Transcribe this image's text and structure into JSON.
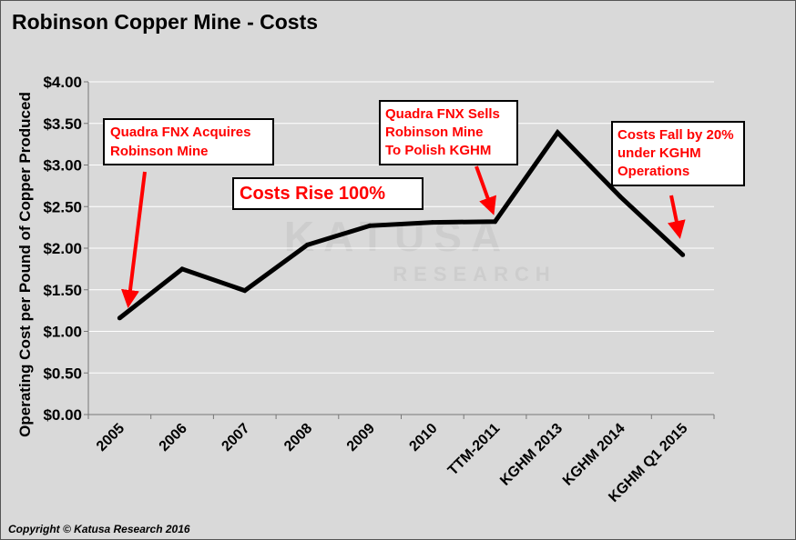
{
  "chart_data": {
    "type": "line",
    "title": "Robinson Copper Mine - Costs",
    "ylabel": "Operating Cost per Pound of Copper Produced",
    "xlabel": "",
    "categories": [
      "2005",
      "2006",
      "2007",
      "2008",
      "2009",
      "2010",
      "TTM-2011",
      "KGHM 2013",
      "KGHM 2014",
      "KGHM Q1 2015"
    ],
    "series": [
      {
        "values": [
          1.16,
          1.75,
          1.49,
          2.04,
          2.27,
          2.31,
          2.32,
          3.39,
          2.62,
          1.92
        ]
      }
    ],
    "ylim": [
      0,
      4
    ],
    "yticks": [
      "$0.00",
      "$0.50",
      "$1.00",
      "$1.50",
      "$2.00",
      "$2.50",
      "$3.00",
      "$3.50",
      "$4.00"
    ],
    "grid": true,
    "line_color": "#000000",
    "annotations": [
      {
        "id": "acquire",
        "text": "Quadra FNX Acquires\nRobinson Mine"
      },
      {
        "id": "rise",
        "text": "Costs Rise 100%"
      },
      {
        "id": "sells",
        "text": "Quadra FNX Sells\nRobinson Mine\nTo Polish KGHM"
      },
      {
        "id": "fall",
        "text": "Costs Fall by 20%\nunder KGHM\nOperations"
      }
    ],
    "watermark": "KATUSA RESEARCH",
    "copyright": "Copyright © Katusa Research 2016"
  },
  "colors": {
    "background": "#d9d9d9",
    "gridline": "#ffffff",
    "annotation_text": "#ff0000",
    "arrow": "#ff0000"
  }
}
